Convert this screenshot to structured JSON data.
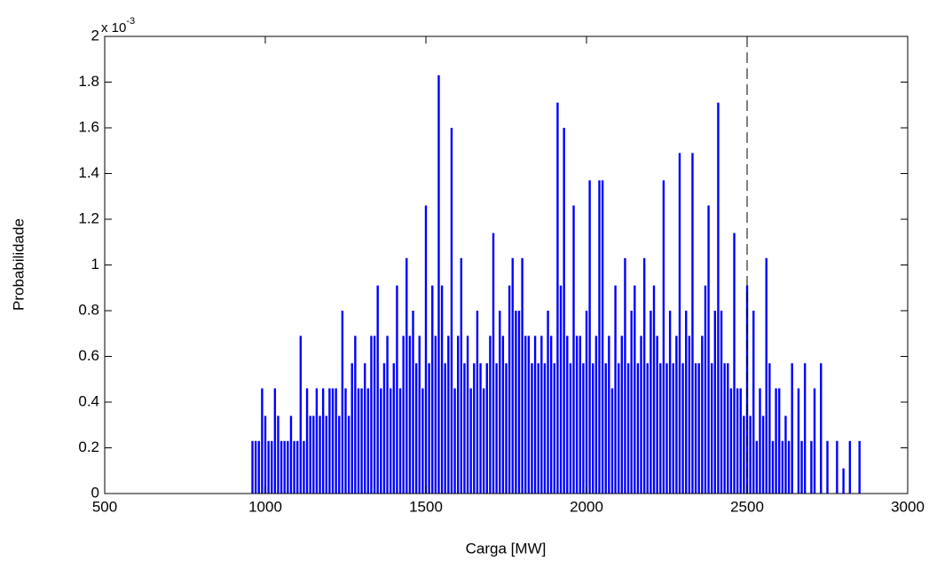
{
  "chart_data": {
    "type": "stem",
    "x_label": "Carga [MW]",
    "y_label": "Probabilidade",
    "y_multiplier": {
      "base": "x 10",
      "exponent": "-3"
    },
    "xlim": [
      500,
      3000
    ],
    "xticks": [
      500,
      1000,
      1500,
      2000,
      2500,
      3000
    ],
    "ylim": [
      0,
      2
    ],
    "yticks": [
      0,
      0.2,
      0.4,
      0.6,
      0.8,
      1,
      1.2,
      1.4,
      1.6,
      1.8,
      2
    ],
    "color": "#0000ff",
    "reference_line": {
      "x": 2500,
      "color": "#000000",
      "style": "dashed"
    },
    "x": [
      960,
      970,
      980,
      990,
      1000,
      1010,
      1020,
      1030,
      1040,
      1050,
      1060,
      1070,
      1080,
      1090,
      1100,
      1110,
      1120,
      1130,
      1140,
      1150,
      1160,
      1170,
      1180,
      1190,
      1200,
      1210,
      1220,
      1230,
      1240,
      1250,
      1260,
      1270,
      1280,
      1290,
      1300,
      1310,
      1320,
      1330,
      1340,
      1350,
      1360,
      1370,
      1380,
      1390,
      1400,
      1410,
      1420,
      1430,
      1440,
      1450,
      1460,
      1470,
      1480,
      1490,
      1500,
      1510,
      1520,
      1530,
      1540,
      1550,
      1560,
      1570,
      1580,
      1590,
      1600,
      1610,
      1620,
      1630,
      1640,
      1650,
      1660,
      1670,
      1680,
      1690,
      1700,
      1710,
      1720,
      1730,
      1740,
      1750,
      1760,
      1770,
      1780,
      1790,
      1800,
      1810,
      1820,
      1830,
      1840,
      1850,
      1860,
      1870,
      1880,
      1890,
      1900,
      1910,
      1920,
      1930,
      1940,
      1950,
      1960,
      1970,
      1980,
      1990,
      2000,
      2010,
      2020,
      2030,
      2040,
      2050,
      2060,
      2070,
      2080,
      2090,
      2100,
      2110,
      2120,
      2130,
      2140,
      2150,
      2160,
      2170,
      2180,
      2190,
      2200,
      2210,
      2220,
      2230,
      2240,
      2250,
      2260,
      2270,
      2280,
      2290,
      2300,
      2310,
      2320,
      2330,
      2340,
      2350,
      2360,
      2370,
      2380,
      2390,
      2400,
      2410,
      2420,
      2430,
      2440,
      2450,
      2460,
      2470,
      2480,
      2490,
      2500,
      2510,
      2520,
      2530,
      2540,
      2550,
      2560,
      2570,
      2580,
      2590,
      2600,
      2610,
      2620,
      2630,
      2640,
      2650,
      2660,
      2670,
      2680,
      2690,
      2700,
      2710,
      2720,
      2730,
      2740,
      2750,
      2760,
      2770,
      2780,
      2790,
      2800,
      2810,
      2820,
      2830,
      2840,
      2850
    ],
    "values": [
      0.23,
      0.23,
      0.23,
      0.46,
      0.34,
      0.23,
      0.23,
      0.46,
      0.34,
      0.23,
      0.23,
      0.23,
      0.34,
      0.23,
      0.23,
      0.69,
      0.23,
      0.46,
      0.34,
      0.34,
      0.46,
      0.34,
      0.46,
      0.34,
      0.46,
      0.46,
      0.46,
      0.34,
      0.8,
      0.46,
      0.34,
      0.57,
      0.69,
      0.46,
      0.46,
      0.57,
      0.46,
      0.69,
      0.69,
      0.91,
      0.46,
      0.57,
      0.69,
      0.46,
      0.57,
      0.91,
      0.46,
      0.69,
      1.03,
      0.69,
      0.8,
      0.57,
      0.69,
      0.46,
      1.26,
      0.57,
      0.91,
      0.69,
      1.83,
      0.91,
      0.57,
      0.69,
      1.6,
      0.46,
      0.69,
      1.03,
      0.57,
      0.69,
      0.46,
      0.57,
      0.8,
      0.57,
      0.46,
      0.57,
      0.69,
      1.14,
      0.57,
      0.8,
      0.69,
      0.57,
      0.91,
      1.03,
      0.8,
      0.8,
      1.03,
      0.69,
      0.69,
      0.57,
      0.69,
      0.57,
      0.69,
      0.57,
      0.8,
      0.69,
      0.57,
      1.71,
      0.91,
      1.6,
      0.69,
      0.57,
      1.26,
      0.69,
      0.69,
      0.57,
      0.8,
      1.37,
      0.57,
      0.69,
      1.37,
      1.37,
      0.57,
      0.69,
      0.46,
      0.91,
      0.57,
      0.69,
      1.03,
      0.57,
      0.8,
      0.91,
      0.57,
      0.69,
      1.03,
      0.57,
      0.8,
      0.91,
      0.69,
      0.57,
      1.37,
      0.57,
      0.8,
      0.57,
      0.69,
      1.49,
      0.57,
      0.8,
      0.69,
      1.49,
      0.57,
      0.57,
      0.69,
      0.91,
      1.26,
      0.57,
      0.8,
      1.71,
      0.8,
      0.57,
      0.57,
      0.46,
      1.14,
      0.46,
      0.46,
      0.34,
      0.91,
      0.34,
      0.8,
      0.23,
      0.46,
      0.34,
      1.03,
      0.57,
      0.23,
      0.46,
      0.46,
      0.23,
      0.34,
      0.23,
      0.57,
      0,
      0.46,
      0.23,
      0.57,
      0,
      0.23,
      0.46,
      0,
      0.57,
      0,
      0.23,
      0,
      0,
      0.23,
      0,
      0.11,
      0,
      0.23,
      0,
      0,
      0.23
    ]
  }
}
